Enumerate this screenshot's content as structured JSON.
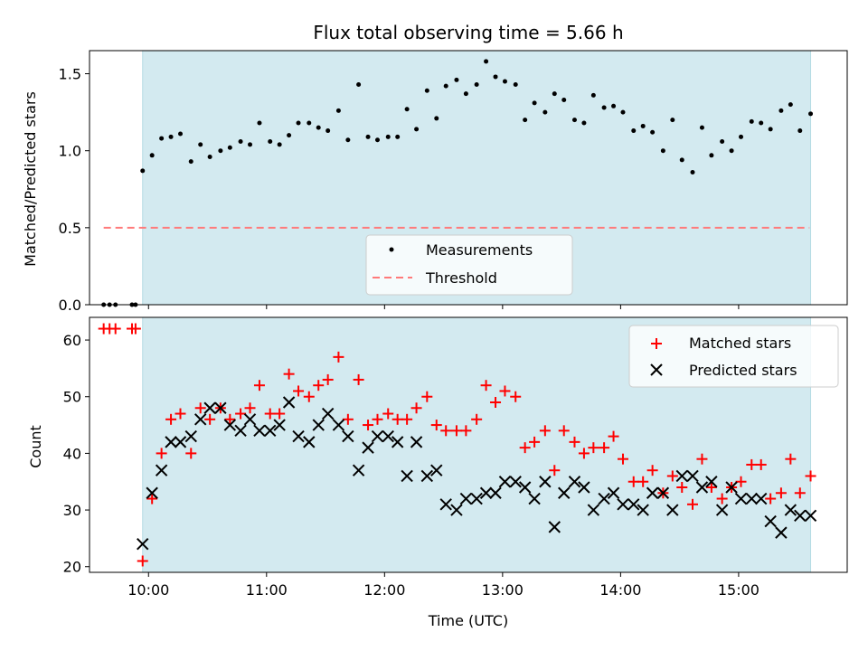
{
  "chart_data": [
    {
      "type": "scatter",
      "title": "Flux total observing time = 5.66 h",
      "xlabel": "",
      "ylabel": "Matched/Predicted stars",
      "x_unit": "hours (UTC)",
      "xlim": [
        9.5,
        15.92
      ],
      "ylim": [
        0,
        1.65
      ],
      "yticks": [
        0.0,
        0.5,
        1.0,
        1.5
      ],
      "ytick_labels": [
        "0.0",
        "0.5",
        "1.0",
        "1.5"
      ],
      "shaded_span": [
        9.95,
        15.61
      ],
      "shade_color": "#d3eaf0",
      "legend": {
        "placement": "lower-center",
        "entries": [
          "Measurements",
          "Threshold"
        ]
      },
      "threshold": {
        "name": "Threshold",
        "y": 0.5,
        "x_range": [
          9.62,
          15.6
        ],
        "color": "#ff7a7a",
        "style": "dashed"
      },
      "series": [
        {
          "name": "Measurements",
          "color": "#000000",
          "marker": "dot",
          "x": [
            9.62,
            9.67,
            9.72,
            9.86,
            9.89,
            9.95,
            10.03,
            10.11,
            10.19,
            10.27,
            10.36,
            10.44,
            10.52,
            10.61,
            10.69,
            10.78,
            10.86,
            10.94,
            11.03,
            11.11,
            11.19,
            11.27,
            11.36,
            11.44,
            11.52,
            11.61,
            11.69,
            11.78,
            11.86,
            11.94,
            12.03,
            12.11,
            12.19,
            12.27,
            12.36,
            12.44,
            12.52,
            12.61,
            12.69,
            12.78,
            12.86,
            12.94,
            13.02,
            13.11,
            13.19,
            13.27,
            13.36,
            13.44,
            13.52,
            13.61,
            13.69,
            13.77,
            13.86,
            13.94,
            14.02,
            14.11,
            14.19,
            14.27,
            14.36,
            14.44,
            14.52,
            14.61,
            14.69,
            14.77,
            14.86,
            14.94,
            15.02,
            15.11,
            15.19,
            15.27,
            15.36,
            15.44,
            15.52,
            15.61
          ],
          "y": [
            0.0,
            0.0,
            0.0,
            0.0,
            0.0,
            0.87,
            0.97,
            1.08,
            1.09,
            1.11,
            0.93,
            1.04,
            0.96,
            1.0,
            1.02,
            1.06,
            1.04,
            1.18,
            1.06,
            1.04,
            1.1,
            1.18,
            1.18,
            1.15,
            1.13,
            1.26,
            1.07,
            1.43,
            1.09,
            1.07,
            1.09,
            1.09,
            1.27,
            1.14,
            1.39,
            1.21,
            1.42,
            1.46,
            1.37,
            1.43,
            1.58,
            1.48,
            1.45,
            1.43,
            1.2,
            1.31,
            1.25,
            1.37,
            1.33,
            1.2,
            1.18,
            1.36,
            1.28,
            1.29,
            1.25,
            1.13,
            1.16,
            1.12,
            1.0,
            1.2,
            0.94,
            0.86,
            1.15,
            0.97,
            1.06,
            1.0,
            1.09,
            1.19,
            1.18,
            1.14,
            1.26,
            1.3,
            1.13,
            1.24
          ]
        }
      ]
    },
    {
      "type": "scatter",
      "title": "",
      "xlabel": "Time (UTC)",
      "ylabel": "Count",
      "x_unit": "hours (UTC)",
      "xlim": [
        9.5,
        15.92
      ],
      "ylim": [
        19,
        64
      ],
      "yticks": [
        20,
        30,
        40,
        50,
        60
      ],
      "ytick_labels": [
        "20",
        "30",
        "40",
        "50",
        "60"
      ],
      "xticks": [
        10,
        11,
        12,
        13,
        14,
        15
      ],
      "xtick_labels": [
        "10:00",
        "11:00",
        "12:00",
        "13:00",
        "14:00",
        "15:00"
      ],
      "shaded_span": [
        9.95,
        15.61
      ],
      "shade_color": "#d3eaf0",
      "legend": {
        "placement": "top-right",
        "entries": [
          "Matched stars",
          "Predicted stars"
        ]
      },
      "series": [
        {
          "name": "Matched stars",
          "color": "#ff0000",
          "marker": "plus",
          "x": [
            9.62,
            9.67,
            9.72,
            9.86,
            9.89,
            9.95,
            10.03,
            10.11,
            10.19,
            10.27,
            10.36,
            10.44,
            10.52,
            10.61,
            10.69,
            10.78,
            10.86,
            10.94,
            11.03,
            11.11,
            11.19,
            11.27,
            11.36,
            11.44,
            11.52,
            11.61,
            11.69,
            11.78,
            11.86,
            11.94,
            12.03,
            12.11,
            12.19,
            12.27,
            12.36,
            12.44,
            12.52,
            12.61,
            12.69,
            12.78,
            12.86,
            12.94,
            13.02,
            13.11,
            13.19,
            13.27,
            13.36,
            13.44,
            13.52,
            13.61,
            13.69,
            13.77,
            13.86,
            13.94,
            14.02,
            14.11,
            14.19,
            14.27,
            14.36,
            14.44,
            14.52,
            14.61,
            14.69,
            14.77,
            14.86,
            14.94,
            15.02,
            15.11,
            15.19,
            15.27,
            15.36,
            15.44,
            15.52,
            15.61
          ],
          "y": [
            62,
            62,
            62,
            62,
            62,
            21,
            32,
            40,
            46,
            47,
            40,
            48,
            46,
            48,
            46,
            47,
            48,
            52,
            47,
            47,
            54,
            51,
            50,
            52,
            53,
            57,
            46,
            53,
            45,
            46,
            47,
            46,
            46,
            48,
            50,
            45,
            44,
            44,
            44,
            46,
            52,
            49,
            51,
            50,
            41,
            42,
            44,
            37,
            44,
            42,
            40,
            41,
            41,
            43,
            39,
            35,
            35,
            37,
            33,
            36,
            34,
            31,
            39,
            34,
            32,
            34,
            35,
            38,
            38,
            32,
            33,
            39,
            33,
            36
          ]
        },
        {
          "name": "Predicted stars",
          "color": "#000000",
          "marker": "x",
          "x": [
            9.95,
            10.03,
            10.11,
            10.19,
            10.27,
            10.36,
            10.44,
            10.52,
            10.61,
            10.69,
            10.78,
            10.86,
            10.94,
            11.03,
            11.11,
            11.19,
            11.27,
            11.36,
            11.44,
            11.52,
            11.61,
            11.69,
            11.78,
            11.86,
            11.94,
            12.03,
            12.11,
            12.19,
            12.27,
            12.36,
            12.44,
            12.52,
            12.61,
            12.69,
            12.78,
            12.86,
            12.94,
            13.02,
            13.11,
            13.19,
            13.27,
            13.36,
            13.44,
            13.52,
            13.61,
            13.69,
            13.77,
            13.86,
            13.94,
            14.02,
            14.11,
            14.19,
            14.27,
            14.36,
            14.44,
            14.52,
            14.61,
            14.69,
            14.77,
            14.86,
            14.94,
            15.02,
            15.11,
            15.19,
            15.27,
            15.36,
            15.44,
            15.52,
            15.61
          ],
          "y": [
            24,
            33,
            37,
            42,
            42,
            43,
            46,
            48,
            48,
            45,
            44,
            46,
            44,
            44,
            45,
            49,
            43,
            42,
            45,
            47,
            45,
            43,
            37,
            41,
            43,
            43,
            42,
            36,
            42,
            36,
            37,
            31,
            30,
            32,
            32,
            33,
            33,
            35,
            35,
            34,
            32,
            35,
            27,
            33,
            35,
            34,
            30,
            32,
            33,
            31,
            31,
            30,
            33,
            33,
            30,
            36,
            36,
            34,
            35,
            30,
            34,
            32,
            32,
            32,
            28,
            26,
            30,
            29,
            29
          ]
        }
      ]
    }
  ]
}
